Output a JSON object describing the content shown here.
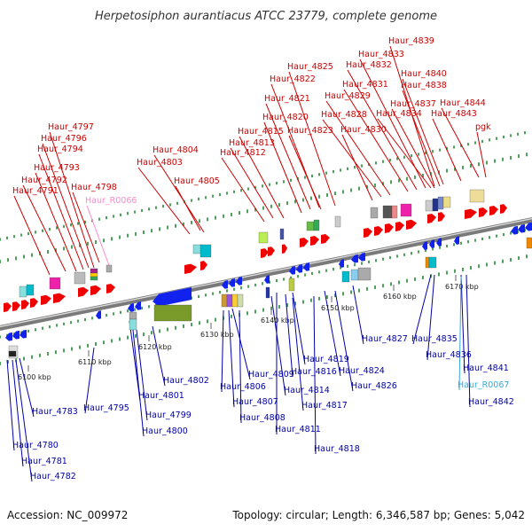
{
  "title": "Herpetosiphon aurantiacus ATCC 23779, complete genome",
  "footer": {
    "accession": "Accession: NC_009972",
    "info": "Topology: circular; Length: 6,346,587 bp; Genes: 5,042"
  },
  "colors": {
    "plus_label": "#cc0000",
    "minus_label": "#0000aa",
    "rna_plus_label": "#ff88cc",
    "rna_minus_label": "#33aadd",
    "plus_arrow": "#ee0000",
    "minus_arrow": "#1122ee",
    "axis": "#888888",
    "tick_mark": "#228833"
  },
  "ticks": [
    "6100 kbp",
    "6110 kbp",
    "6120 kbp",
    "6130 kbp",
    "6140 kbp",
    "6150 kbp",
    "6160 kbp",
    "6170 kbp"
  ],
  "labels_plus": [
    "Haur_4839",
    "Haur_4833",
    "Haur_4832",
    "Haur_4825",
    "Haur_4840",
    "Haur_4822",
    "Haur_4831",
    "Haur_4838",
    "Haur_4829",
    "Haur_4821",
    "Haur_4837",
    "Haur_4844",
    "Haur_4828",
    "Haur_4834",
    "Haur_4843",
    "Haur_4797",
    "Haur_4820",
    "Haur_4815",
    "Haur_4823",
    "Haur_4830",
    "pgk",
    "Haur_4796",
    "Haur_4813",
    "Haur_4794",
    "Haur_4804",
    "Haur_4812",
    "Haur_4803",
    "Haur_4793",
    "Haur_4805",
    "Haur_4792",
    "Haur_4798",
    "Haur_4791"
  ],
  "labels_rna_plus": [
    "Haur_R0066"
  ],
  "labels_minus": [
    "Haur_4827",
    "Haur_4835",
    "Haur_4836",
    "Haur_4819",
    "Haur_4816",
    "Haur_4841",
    "Haur_4802",
    "Haur_4809",
    "Haur_4824",
    "Haur_4806",
    "Haur_4814",
    "Haur_4826",
    "Haur_4801",
    "Haur_4807",
    "Haur_4817",
    "Haur_4842",
    "Haur_4783",
    "Haur_4795",
    "Haur_4799",
    "Haur_4808",
    "Haur_4811",
    "Haur_4800",
    "Haur_4780",
    "Haur_4818",
    "Haur_4781",
    "Haur_4782"
  ],
  "labels_rna_minus": [
    "Haur_R0067"
  ]
}
